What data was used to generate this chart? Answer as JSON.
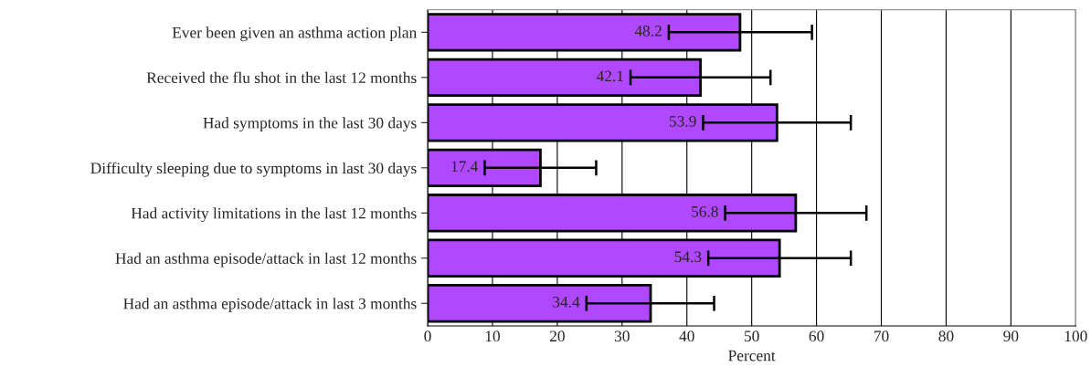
{
  "chart_data": {
    "type": "bar",
    "orientation": "horizontal",
    "xlabel": "Percent",
    "categories": [
      "Ever been given an asthma action plan",
      "Received the flu shot in the last 12 months",
      "Had symptoms in the last 30 days",
      "Difficulty sleeping due to symptoms in last 30 days",
      "Had activity limitations in the last 12 months",
      "Had an asthma episode/attack in last 12 months",
      "Had an asthma episode/attack in last 3 months"
    ],
    "values": [
      48.2,
      42.1,
      53.9,
      17.4,
      56.8,
      54.3,
      34.4
    ],
    "errors": [
      [
        37.2,
        59.3
      ],
      [
        31.3,
        52.9
      ],
      [
        42.5,
        65.3
      ],
      [
        8.8,
        26.0
      ],
      [
        45.9,
        67.7
      ],
      [
        43.3,
        65.3
      ],
      [
        24.5,
        44.2
      ]
    ],
    "color": "#b048ff",
    "data_labels": true,
    "xlim": [
      0,
      100
    ],
    "xticks": [
      0,
      10,
      20,
      30,
      40,
      50,
      60,
      70,
      80,
      90,
      100
    ],
    "grid": "x",
    "legend": false
  }
}
